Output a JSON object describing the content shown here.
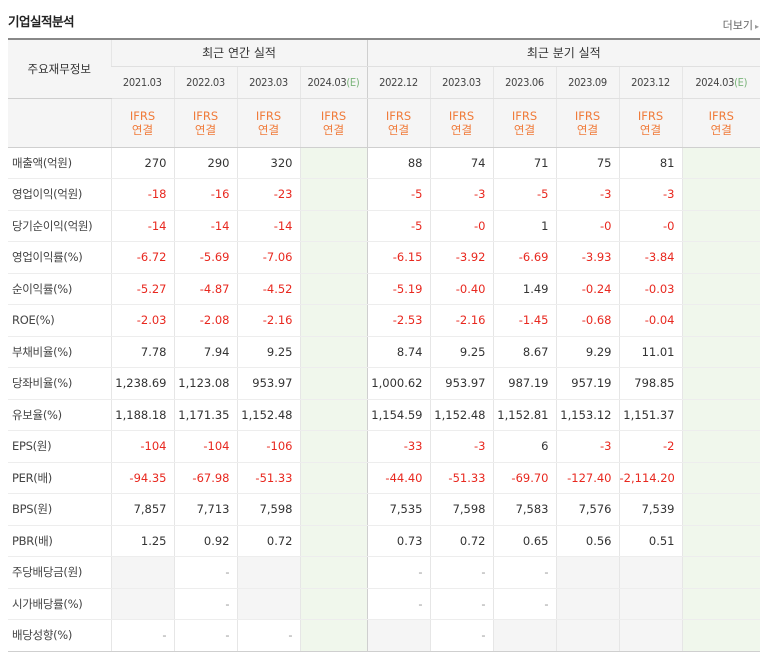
{
  "header": {
    "title": "기업실적분석",
    "more_label": "더보기",
    "more_arrow": "▸"
  },
  "table": {
    "corner_label": "주요재무정보",
    "group_annual": "최근 연간 실적",
    "group_quarter": "최근 분기 실적",
    "periods": [
      {
        "label": "2021.03",
        "est": ""
      },
      {
        "label": "2022.03",
        "est": ""
      },
      {
        "label": "2023.03",
        "est": ""
      },
      {
        "label": "2024.03",
        "est": "(E)"
      },
      {
        "label": "2022.12",
        "est": ""
      },
      {
        "label": "2023.03",
        "est": ""
      },
      {
        "label": "2023.06",
        "est": ""
      },
      {
        "label": "2023.09",
        "est": ""
      },
      {
        "label": "2023.12",
        "est": ""
      },
      {
        "label": "2024.03",
        "est": "(E)"
      }
    ],
    "ifrs_line1": "IFRS",
    "ifrs_line2": "연결",
    "rows": [
      {
        "label": "매출액(억원)",
        "values": [
          "270",
          "290",
          "320",
          "",
          "88",
          "74",
          "71",
          "75",
          "81",
          ""
        ]
      },
      {
        "label": "영업이익(억원)",
        "values": [
          "-18",
          "-16",
          "-23",
          "",
          "-5",
          "-3",
          "-5",
          "-3",
          "-3",
          ""
        ]
      },
      {
        "label": "당기순이익(억원)",
        "values": [
          "-14",
          "-14",
          "-14",
          "",
          "-5",
          "-0",
          "1",
          "-0",
          "-0",
          ""
        ]
      },
      {
        "label": "영업이익률(%)",
        "values": [
          "-6.72",
          "-5.69",
          "-7.06",
          "",
          "-6.15",
          "-3.92",
          "-6.69",
          "-3.93",
          "-3.84",
          ""
        ]
      },
      {
        "label": "순이익률(%)",
        "values": [
          "-5.27",
          "-4.87",
          "-4.52",
          "",
          "-5.19",
          "-0.40",
          "1.49",
          "-0.24",
          "-0.03",
          ""
        ]
      },
      {
        "label": "ROE(%)",
        "values": [
          "-2.03",
          "-2.08",
          "-2.16",
          "",
          "-2.53",
          "-2.16",
          "-1.45",
          "-0.68",
          "-0.04",
          ""
        ]
      },
      {
        "label": "부채비율(%)",
        "values": [
          "7.78",
          "7.94",
          "9.25",
          "",
          "8.74",
          "9.25",
          "8.67",
          "9.29",
          "11.01",
          ""
        ]
      },
      {
        "label": "당좌비율(%)",
        "values": [
          "1,238.69",
          "1,123.08",
          "953.97",
          "",
          "1,000.62",
          "953.97",
          "987.19",
          "957.19",
          "798.85",
          ""
        ]
      },
      {
        "label": "유보율(%)",
        "values": [
          "1,188.18",
          "1,171.35",
          "1,152.48",
          "",
          "1,154.59",
          "1,152.48",
          "1,152.81",
          "1,153.12",
          "1,151.37",
          ""
        ]
      },
      {
        "label": "EPS(원)",
        "values": [
          "-104",
          "-104",
          "-106",
          "",
          "-33",
          "-3",
          "6",
          "-3",
          "-2",
          ""
        ]
      },
      {
        "label": "PER(배)",
        "values": [
          "-94.35",
          "-67.98",
          "-51.33",
          "",
          "-44.40",
          "-51.33",
          "-69.70",
          "-127.40",
          "-2,114.20",
          ""
        ]
      },
      {
        "label": "BPS(원)",
        "values": [
          "7,857",
          "7,713",
          "7,598",
          "",
          "7,535",
          "7,598",
          "7,583",
          "7,576",
          "7,539",
          ""
        ]
      },
      {
        "label": "PBR(배)",
        "values": [
          "1.25",
          "0.92",
          "0.72",
          "",
          "0.73",
          "0.72",
          "0.65",
          "0.56",
          "0.51",
          ""
        ]
      },
      {
        "label": "주당배당금(원)",
        "values": [
          "",
          "-",
          "",
          "",
          "-",
          "-",
          "-",
          "",
          "",
          ""
        ]
      },
      {
        "label": "시가배당률(%)",
        "values": [
          "",
          "-",
          "",
          "",
          "-",
          "-",
          "-",
          "",
          "",
          ""
        ]
      },
      {
        "label": "배당성향(%)",
        "values": [
          "-",
          "-",
          "-",
          "",
          "",
          "-",
          "",
          "",
          "",
          ""
        ]
      }
    ],
    "group_breaks": [
      6,
      9,
      13
    ],
    "empty_cells": {
      "13": [
        0,
        2,
        7,
        8
      ],
      "14": [
        0,
        2,
        7,
        8
      ],
      "15": [
        4,
        6,
        7,
        8
      ]
    },
    "colors": {
      "negative": "#e8281f",
      "ifrs": "#f07b3a",
      "estimate_bg": "#f0f7ec",
      "estimate_text": "#7ab47a"
    }
  }
}
